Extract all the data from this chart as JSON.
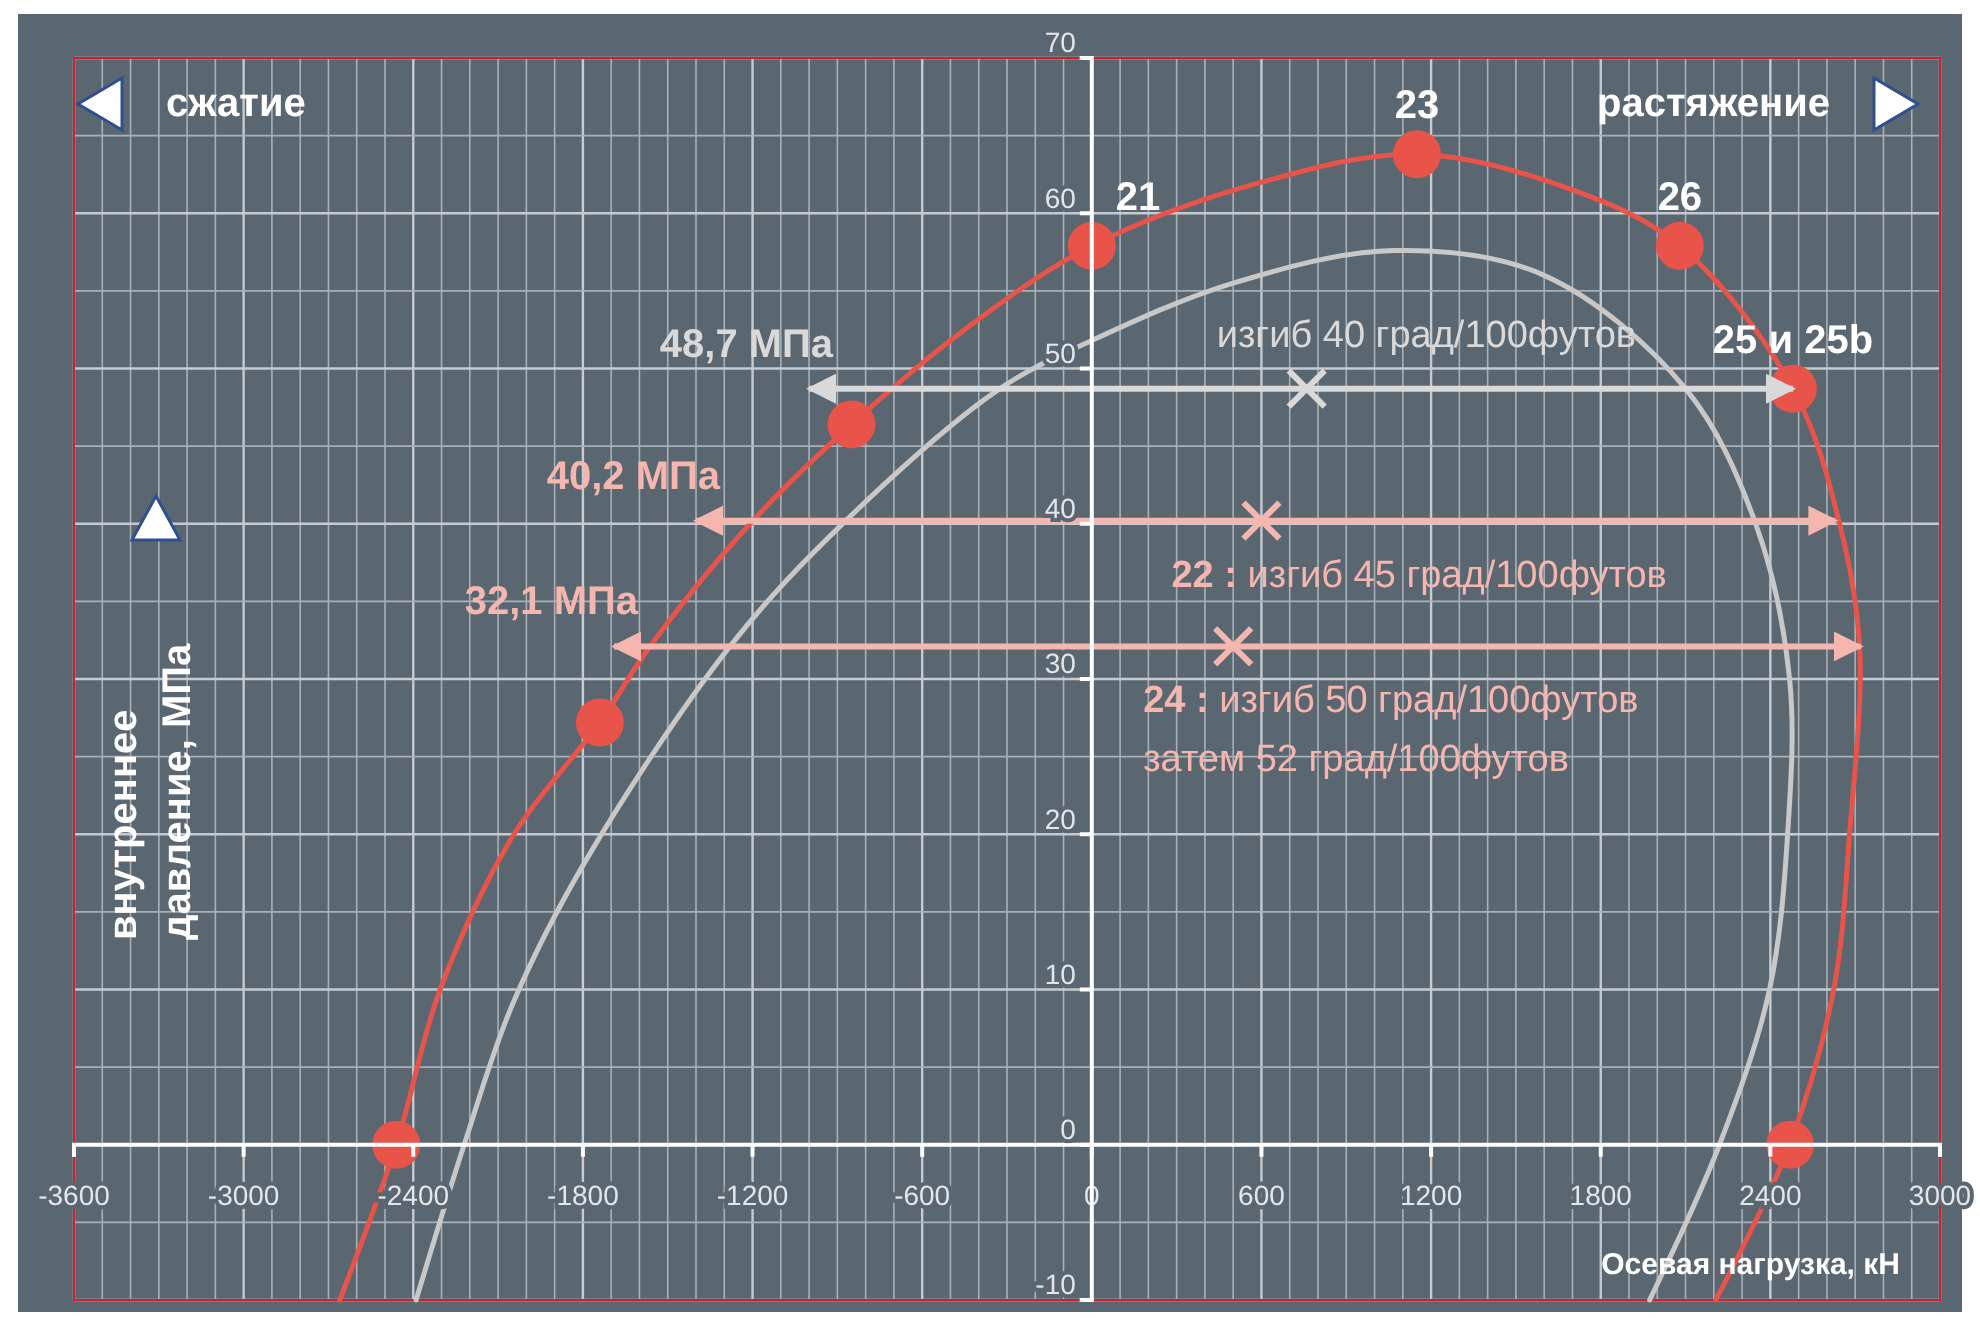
{
  "chart_data": {
    "type": "line",
    "xlabel": "Осевая нагрузка, кН",
    "ylabel": "внутреннее\nдавление, МПа",
    "xlim": [
      -3600,
      3000
    ],
    "ylim": [
      -10,
      70
    ],
    "xticks": [
      -3600,
      -3000,
      -2400,
      -1800,
      -1200,
      -600,
      0,
      600,
      1200,
      1800,
      2400,
      3000
    ],
    "yticks": [
      -10,
      0,
      10,
      20,
      30,
      40,
      50,
      60,
      70
    ],
    "grid": true,
    "series": [
      {
        "color": "#e8534a",
        "marker": "none",
        "x": [
          -2660,
          -2460,
          -2305,
          -2044,
          -1740,
          -1563,
          -1209,
          -850,
          -450,
          0,
          600,
          1150,
          1700,
          2080,
          2480,
          2645,
          2716,
          2680,
          2624,
          2468,
          2207
        ],
        "values": [
          -10,
          0,
          10,
          20,
          27.2,
          32.1,
          40,
          46.4,
          52.5,
          57.9,
          62,
          63.8,
          61.5,
          57.9,
          48.7,
          40,
          32,
          20,
          10,
          0,
          -10
        ]
      },
      {
        "color": "#c8c8c8",
        "marker": "none",
        "x": [
          -2390,
          -2220,
          -2050,
          -1790,
          -1280,
          -870,
          -325,
          0,
          500,
          1068,
          1600,
          2100,
          2348,
          2468,
          2461,
          2397,
          2220,
          1973
        ],
        "values": [
          -10,
          0,
          9,
          18.3,
          32.1,
          40.2,
          48.7,
          51.8,
          55.5,
          57.6,
          56,
          48.7,
          40,
          30,
          20,
          10,
          0,
          -10
        ]
      },
      {
        "type": "scatter",
        "color": "#e8534a",
        "marker": "circle",
        "x": [
          -2460,
          -1740,
          -850,
          0,
          1150,
          2080,
          2480,
          2470
        ],
        "values": [
          0,
          27.2,
          46.4,
          57.9,
          63.8,
          57.9,
          48.7,
          0
        ]
      },
      {
        "type": "scatter",
        "color": "#d9d9d9",
        "marker": "cross",
        "x": [
          760
        ],
        "values": [
          48.7
        ],
        "xerrors": [
          [
            -1000,
            2480
          ]
        ]
      },
      {
        "type": "scatter",
        "color": "#f4b6ae",
        "marker": "cross",
        "x": [
          600,
          500
        ],
        "values": [
          40.2,
          32.1
        ],
        "xerrors": [
          [
            -1400,
            2630
          ],
          [
            -1690,
            2720
          ]
        ]
      }
    ],
    "annotations": [
      "сжатие",
      "растяжение",
      {
        "text": "21",
        "x": 0,
        "y": 57.9
      },
      {
        "text": "23",
        "x": 1150,
        "y": 63.8
      },
      {
        "text": "26",
        "x": 2080,
        "y": 57.9
      },
      {
        "text": "25 и 25b",
        "x": 2480,
        "y": 48.7
      },
      {
        "text": "48,7 МПа",
        "x": -1000,
        "y": 48.7
      },
      {
        "text": "40,2 МПа",
        "x": -1400,
        "y": 40.2
      },
      {
        "text": "32,1 МПа",
        "x": -1690,
        "y": 32.1
      },
      {
        "text": "изгиб 40 град/100футов",
        "x": 760,
        "y": 48.7
      },
      {
        "text": "22 : изгиб 45 град/100футов",
        "x": 600,
        "y": 40.2
      },
      {
        "text": "24 : изгиб 50 град/100футов\nзатем 52 град/100футов",
        "x": 500,
        "y": 32.1
      }
    ]
  }
}
